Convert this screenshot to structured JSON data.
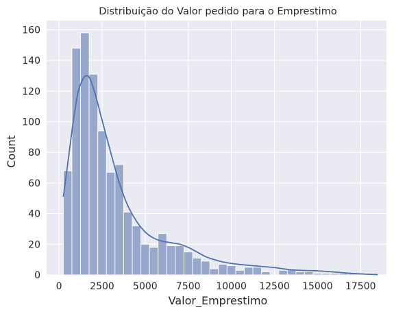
{
  "chart_data": {
    "type": "bar",
    "title": "Distribuição do Valor pedido para o Emprestimo",
    "xlabel": "Valor_Emprestimo",
    "ylabel": "Count",
    "xlim": [
      -720,
      19000
    ],
    "ylim": [
      0,
      166
    ],
    "x_ticks": [
      0,
      2500,
      5000,
      7500,
      10000,
      12500,
      15000,
      17500
    ],
    "y_ticks": [
      0,
      20,
      40,
      60,
      80,
      100,
      120,
      140,
      160
    ],
    "grid": true,
    "bins": {
      "start": 250,
      "width": 500,
      "counts": [
        68,
        148,
        158,
        131,
        94,
        67,
        72,
        41,
        32,
        20,
        18,
        27,
        19,
        19,
        15,
        11,
        9,
        4,
        7,
        6,
        3,
        5,
        5,
        2,
        0,
        3,
        4,
        2,
        2,
        1,
        1,
        1,
        1,
        1,
        1,
        1
      ]
    },
    "kde": {
      "x": [
        250,
        500,
        800,
        1100,
        1400,
        1600,
        1800,
        2100,
        2500,
        3000,
        3500,
        4000,
        4500,
        5000,
        5500,
        6000,
        6500,
        7000,
        7500,
        8000,
        8500,
        9000,
        9500,
        10000,
        10500,
        11000,
        11500,
        12000,
        12500,
        13000,
        13500,
        14000,
        14500,
        15000,
        15500,
        16000,
        16500,
        17000,
        17500,
        18000,
        18500
      ],
      "y": [
        51,
        72,
        98,
        119,
        128,
        130,
        128,
        118,
        101,
        80,
        60,
        45,
        35,
        28,
        24,
        22,
        21,
        20,
        18,
        15,
        12,
        10,
        8.5,
        7.5,
        6.8,
        6.3,
        5.8,
        5.3,
        4.8,
        4.0,
        3.3,
        3.0,
        2.8,
        2.7,
        2.3,
        1.9,
        1.4,
        1.0,
        0.7,
        0.4,
        0.2
      ]
    },
    "colors": {
      "background": "#eaeaf2",
      "grid": "#ffffff",
      "bar_fill": "#97a8cc",
      "bar_edge": "#ffffff",
      "kde_line": "#4c72b0"
    }
  }
}
